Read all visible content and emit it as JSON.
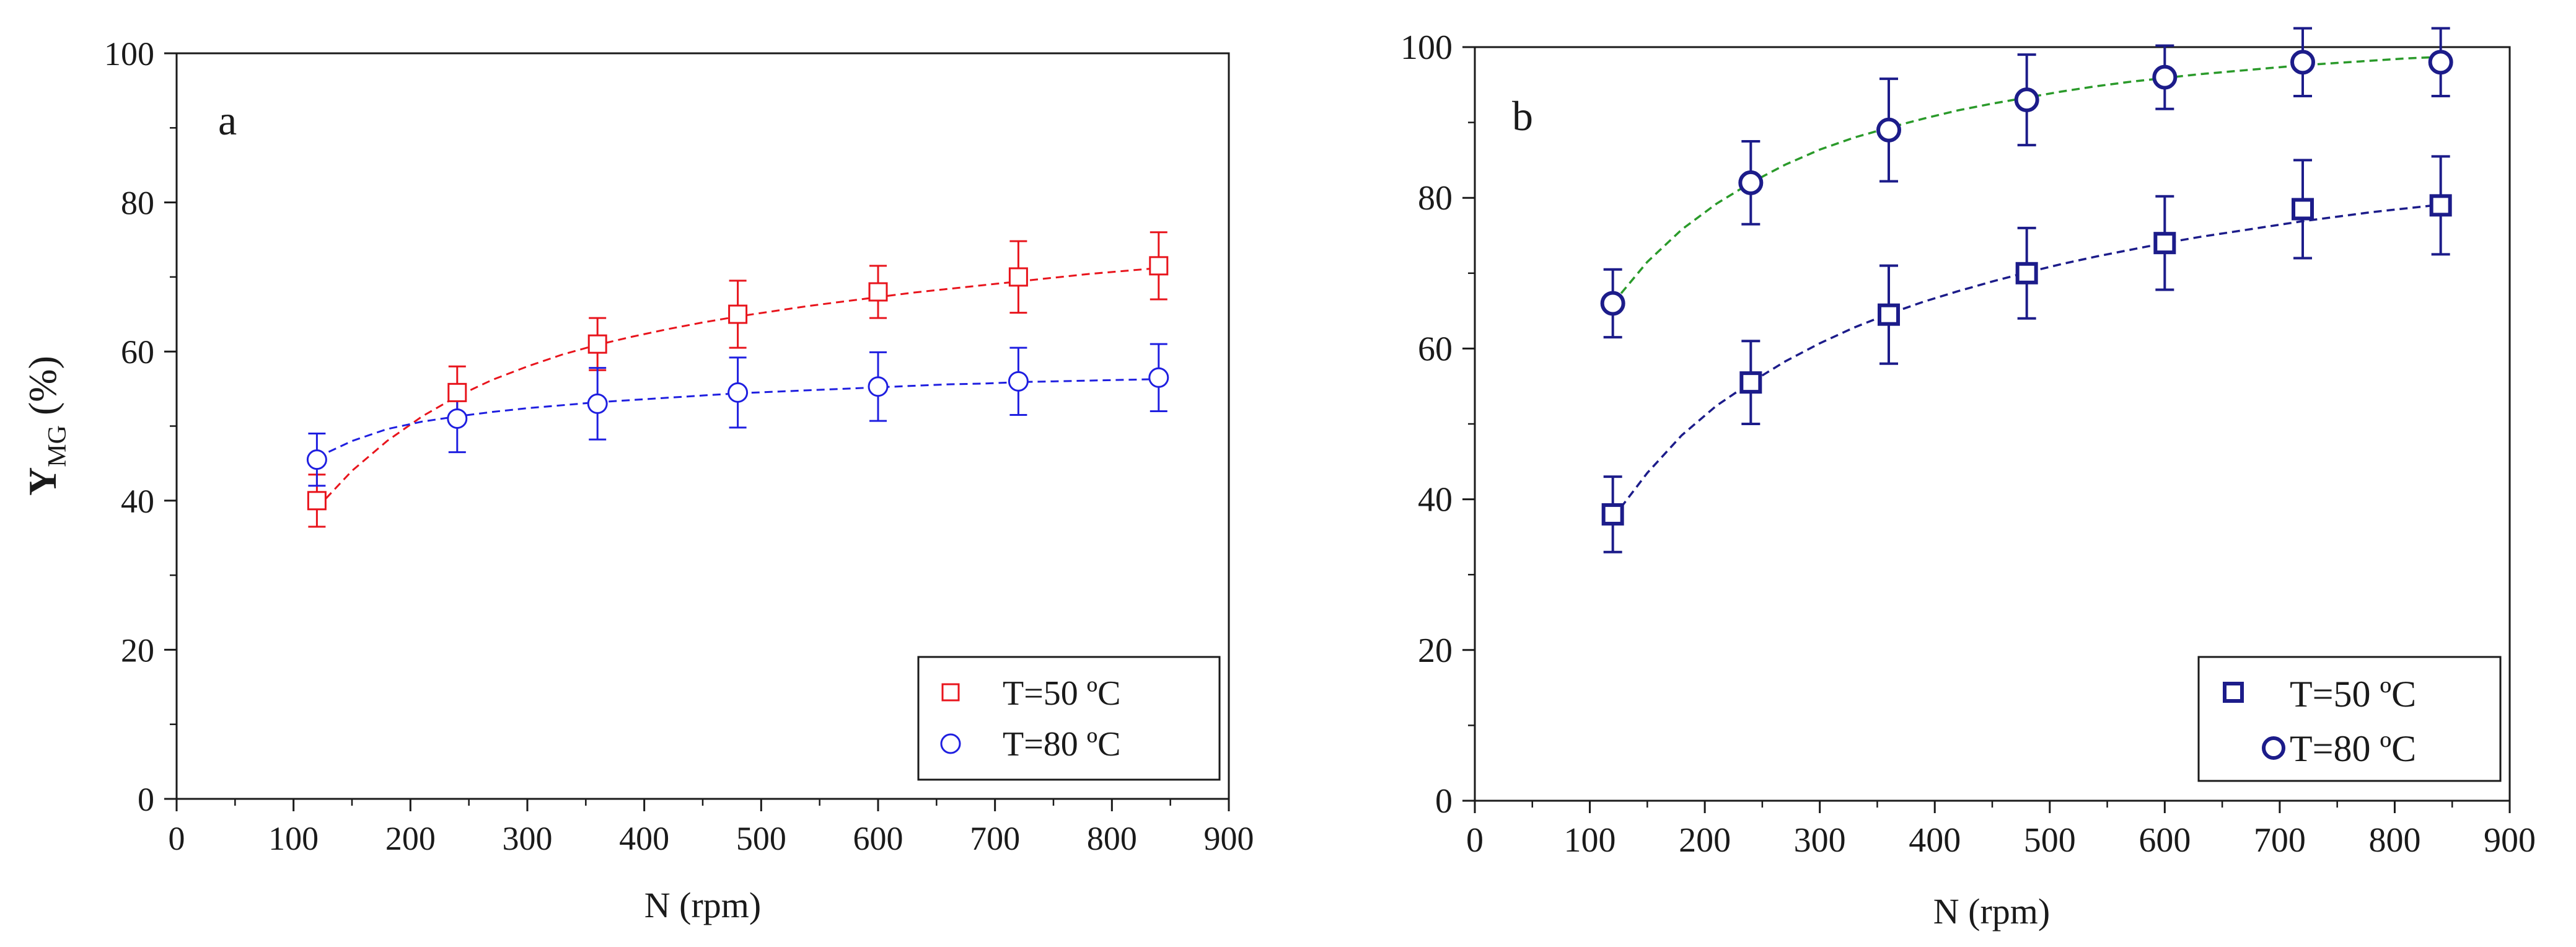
{
  "chart_data": [
    {
      "type": "scatter",
      "panel_label": "a",
      "xlabel": "N (rpm)",
      "ylabel_main": "Y",
      "ylabel_sub": "MG",
      "ylabel_tail": " (%)",
      "xlim": [
        0,
        900
      ],
      "ylim": [
        0,
        100
      ],
      "xticks": [
        "0",
        "100",
        "200",
        "300",
        "400",
        "500",
        "600",
        "700",
        "800",
        "900"
      ],
      "yticks": [
        "0",
        "20",
        "40",
        "60",
        "80",
        "100"
      ],
      "legend_position": "bottom-right",
      "series": [
        {
          "name": "T=50 ºC",
          "marker": "square",
          "color": "#e8141c",
          "line_color": "#e8141c",
          "x": [
            120,
            240,
            360,
            480,
            600,
            720,
            840
          ],
          "y": [
            40,
            54.5,
            61,
            65,
            68,
            70,
            71.5
          ],
          "err": [
            3.5,
            3.5,
            3.5,
            4.5,
            3.5,
            4.8,
            4.5
          ],
          "fit_x": [
            120,
            150,
            180,
            210,
            240,
            270,
            300,
            330,
            360,
            390,
            420,
            450,
            480,
            510,
            540,
            570,
            600,
            630,
            660,
            690,
            720,
            750,
            780,
            810,
            840
          ],
          "fit_y": [
            39,
            44,
            48,
            51.3,
            54,
            56.2,
            58,
            59.6,
            60.9,
            62,
            63,
            63.9,
            64.7,
            65.4,
            66.1,
            66.7,
            67.3,
            67.9,
            68.4,
            68.9,
            69.4,
            69.9,
            70.4,
            70.8,
            71.2
          ]
        },
        {
          "name": "T=80 ºC",
          "marker": "circle",
          "color": "#1f1fe0",
          "line_color": "#1f1fe0",
          "x": [
            120,
            240,
            360,
            480,
            600,
            720,
            840
          ],
          "y": [
            45.5,
            51,
            53,
            54.5,
            55.3,
            56,
            56.5
          ],
          "err": [
            3.5,
            4.5,
            4.8,
            4.7,
            4.6,
            4.5,
            4.5
          ],
          "fit_x": [
            120,
            150,
            180,
            210,
            240,
            270,
            300,
            330,
            360,
            390,
            420,
            450,
            480,
            510,
            540,
            570,
            600,
            630,
            660,
            690,
            720,
            750,
            780,
            810,
            840
          ],
          "fit_y": [
            45.8,
            48,
            49.6,
            50.6,
            51.3,
            51.9,
            52.4,
            52.8,
            53.2,
            53.5,
            53.8,
            54.1,
            54.4,
            54.6,
            54.8,
            55,
            55.2,
            55.4,
            55.6,
            55.7,
            55.9,
            56,
            56.1,
            56.2,
            56.3
          ]
        }
      ]
    },
    {
      "type": "scatter",
      "panel_label": "b",
      "xlabel": "N (rpm)",
      "xlim": [
        0,
        900
      ],
      "ylim": [
        0,
        100
      ],
      "xticks": [
        "0",
        "100",
        "200",
        "300",
        "400",
        "500",
        "600",
        "700",
        "800",
        "900"
      ],
      "yticks": [
        "0",
        "20",
        "40",
        "60",
        "80",
        "100"
      ],
      "legend_position": "bottom-right",
      "series": [
        {
          "name": "T=50 ºC",
          "marker": "square",
          "color": "#1c1c8a",
          "line_color": "#1c1c8a",
          "x": [
            120,
            240,
            360,
            480,
            600,
            720,
            840
          ],
          "y": [
            38,
            55.5,
            64.5,
            70,
            74,
            78.5,
            79
          ],
          "err": [
            5,
            5.5,
            6.5,
            6,
            6.2,
            6.5,
            6.5
          ],
          "fit_x": [
            120,
            150,
            180,
            210,
            240,
            270,
            300,
            330,
            360,
            390,
            420,
            450,
            480,
            510,
            540,
            570,
            600,
            630,
            660,
            690,
            720,
            750,
            780,
            810,
            840
          ],
          "fit_y": [
            37.5,
            43.5,
            48.5,
            52.4,
            55.5,
            58.3,
            60.7,
            62.8,
            64.6,
            66.2,
            67.6,
            68.9,
            70.1,
            71.2,
            72.2,
            73.1,
            74,
            74.8,
            75.5,
            76.2,
            76.9,
            77.5,
            78.1,
            78.6,
            79.1
          ]
        },
        {
          "name": "T=80 ºC",
          "marker": "circle",
          "color": "#1c1c8a",
          "line_color": "#2a9a2a",
          "x": [
            120,
            240,
            360,
            480,
            600,
            720,
            840
          ],
          "y": [
            66,
            82,
            89,
            93,
            96,
            98,
            98
          ],
          "err": [
            4.5,
            5.5,
            6.8,
            6,
            4.2,
            4.5,
            4.5
          ],
          "fit_x": [
            120,
            150,
            180,
            210,
            240,
            270,
            300,
            330,
            360,
            390,
            420,
            450,
            480,
            510,
            540,
            570,
            600,
            630,
            660,
            690,
            720,
            750,
            780,
            810,
            840
          ],
          "fit_y": [
            66,
            71.5,
            75.8,
            79.2,
            82,
            84.4,
            86.4,
            88,
            89.3,
            90.5,
            91.6,
            92.5,
            93.3,
            94.1,
            94.8,
            95.4,
            95.9,
            96.4,
            96.8,
            97.2,
            97.6,
            97.9,
            98.2,
            98.5,
            98.7
          ]
        }
      ]
    }
  ]
}
